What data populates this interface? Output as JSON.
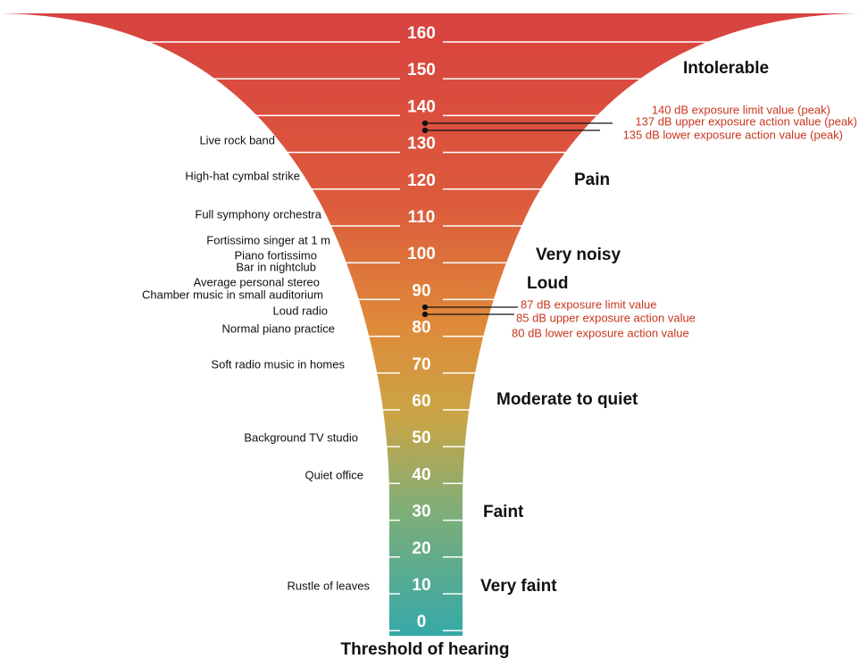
{
  "scale": {
    "ticks": [
      160,
      150,
      140,
      130,
      120,
      110,
      100,
      90,
      80,
      70,
      60,
      50,
      40,
      30,
      20,
      10,
      0
    ]
  },
  "sources": [
    "Live rock band",
    "High-hat cymbal strike",
    "Full symphony orchestra",
    "Fortissimo singer at 1 m",
    "Piano fortissimo",
    "Bar in nightclub",
    "Average personal stereo",
    "Chamber music in small auditorium",
    "Loud radio",
    "Normal piano practice",
    "Soft radio music in homes",
    "Background TV studio",
    "Quiet office",
    "Rustle of leaves"
  ],
  "levels": [
    "Intolerable",
    "Pain",
    "Very noisy",
    "Loud",
    "Moderate to quiet",
    "Faint",
    "Very faint"
  ],
  "exposure_values": [
    "140 dB exposure limit value (peak)",
    "137 dB upper exposure action value (peak)",
    "135 dB lower exposure action value (peak)",
    "87 dB exposure limit value",
    "85 dB upper exposure action value",
    "80 dB lower exposure action value"
  ],
  "footer": "Threshold of hearing"
}
